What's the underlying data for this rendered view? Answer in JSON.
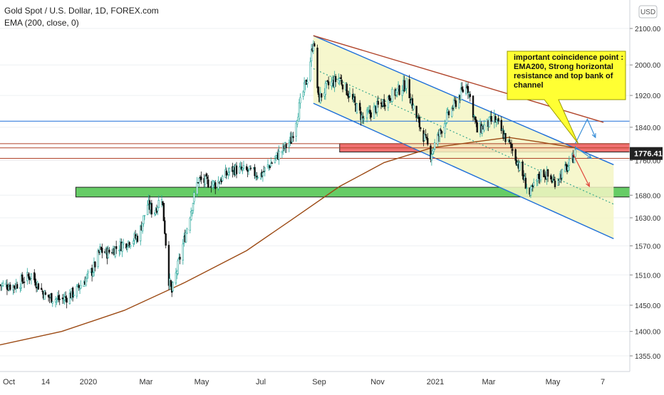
{
  "legend": {
    "symbol": "Gold Spot / U.S. Dollar, 1D, FOREX.com",
    "indicator": "EMA (200, close, 0)"
  },
  "currency_label": "USD",
  "annotation": {
    "lines": [
      "important coincidence point :",
      "EMA200, Strong horizontal",
      "resistance and top bank of",
      "channel"
    ]
  },
  "colors": {
    "up": "#26a69a",
    "down": "#111111",
    "ema": "#9c4a14",
    "channel": "#1e6fd9",
    "trend": "#b0442a",
    "resistance_zone": "#f07070",
    "support_zone": "#66cc66",
    "callout": "#ffff33",
    "last_price_bg": "#222222"
  },
  "chart_data": {
    "type": "candlestick",
    "title": "Gold Spot / U.S. Dollar, 1D, FOREX.com",
    "y_axis": {
      "ticks": [
        2100,
        2000,
        1920,
        1840,
        1760,
        1680,
        1630,
        1570,
        1510,
        1450,
        1400,
        1355
      ],
      "tick_labels": [
        "2100.00",
        "2000.00",
        "1920.00",
        "1840.00",
        "1760.00",
        "1680.00",
        "1630.00",
        "1570.00",
        "1510.00",
        "1450.00",
        "1400.00",
        "1355.00"
      ],
      "range": [
        1330,
        2130
      ],
      "scale": "log"
    },
    "x_axis": {
      "tick_labels": [
        "Oct",
        "14",
        "2020",
        "Mar",
        "May",
        "Jul",
        "Sep",
        "Nov",
        "2021",
        "Mar",
        "May",
        "7"
      ],
      "range": [
        "2019-10-01",
        "2021-06-15"
      ]
    },
    "last_price": {
      "value": 1776.41,
      "label": "1776.41"
    },
    "close_series": [
      [
        "2019-10-01",
        1490
      ],
      [
        "2019-10-15",
        1488
      ],
      [
        "2019-11-01",
        1510
      ],
      [
        "2019-11-15",
        1468
      ],
      [
        "2019-12-01",
        1460
      ],
      [
        "2019-12-15",
        1477
      ],
      [
        "2020-01-01",
        1520
      ],
      [
        "2020-01-08",
        1560
      ],
      [
        "2020-01-15",
        1555
      ],
      [
        "2020-02-01",
        1575
      ],
      [
        "2020-02-15",
        1590
      ],
      [
        "2020-02-24",
        1660
      ],
      [
        "2020-03-01",
        1640
      ],
      [
        "2020-03-09",
        1680
      ],
      [
        "2020-03-16",
        1500
      ],
      [
        "2020-03-19",
        1475
      ],
      [
        "2020-04-01",
        1590
      ],
      [
        "2020-04-14",
        1715
      ],
      [
        "2020-05-01",
        1705
      ],
      [
        "2020-05-18",
        1740
      ],
      [
        "2020-06-01",
        1735
      ],
      [
        "2020-06-15",
        1726
      ],
      [
        "2020-07-01",
        1770
      ],
      [
        "2020-07-15",
        1808
      ],
      [
        "2020-07-24",
        1900
      ],
      [
        "2020-08-01",
        1975
      ],
      [
        "2020-08-06",
        2070
      ],
      [
        "2020-08-11",
        1910
      ],
      [
        "2020-08-20",
        1945
      ],
      [
        "2020-09-01",
        1965
      ],
      [
        "2020-09-24",
        1860
      ],
      [
        "2020-10-15",
        1905
      ],
      [
        "2020-11-06",
        1950
      ],
      [
        "2020-11-15",
        1870
      ],
      [
        "2020-11-30",
        1775
      ],
      [
        "2020-12-15",
        1860
      ],
      [
        "2021-01-05",
        1950
      ],
      [
        "2021-01-15",
        1830
      ],
      [
        "2021-02-01",
        1860
      ],
      [
        "2021-02-20",
        1780
      ],
      [
        "2021-03-05",
        1700
      ],
      [
        "2021-03-08",
        1680
      ],
      [
        "2021-03-20",
        1735
      ],
      [
        "2021-04-01",
        1710
      ],
      [
        "2021-04-15",
        1745
      ],
      [
        "2021-04-22",
        1776.41
      ]
    ],
    "ema200": [
      [
        "2019-10-01",
        1375
      ],
      [
        "2019-12-01",
        1400
      ],
      [
        "2020-02-01",
        1440
      ],
      [
        "2020-04-01",
        1495
      ],
      [
        "2020-06-01",
        1560
      ],
      [
        "2020-07-15",
        1625
      ],
      [
        "2020-09-01",
        1700
      ],
      [
        "2020-10-15",
        1755
      ],
      [
        "2020-12-01",
        1790
      ],
      [
        "2021-01-15",
        1805
      ],
      [
        "2021-02-15",
        1815
      ],
      [
        "2021-03-15",
        1805
      ],
      [
        "2021-04-22",
        1790
      ]
    ],
    "horizontal_levels": [
      {
        "value": 1855,
        "kind": "line"
      },
      {
        "value": 1800,
        "kind": "line"
      },
      {
        "value": 1790,
        "kind": "line"
      },
      {
        "value": 1765,
        "kind": "line"
      }
    ],
    "zones": [
      {
        "kind": "resistance",
        "from": 1780,
        "to": 1800,
        "start": "2020-09-01",
        "end": "2021-06-15"
      },
      {
        "kind": "support",
        "from": 1676,
        "to": 1698,
        "start": "2019-12-15",
        "end": "2021-06-15"
      }
    ],
    "channel": {
      "upper": [
        [
          "2020-08-06",
          2080
        ],
        [
          "2021-05-30",
          1750
        ]
      ],
      "middle": [
        [
          "2020-08-06",
          1990
        ],
        [
          "2021-05-30",
          1660
        ]
      ],
      "lower": [
        [
          "2020-08-06",
          1900
        ],
        [
          "2021-05-30",
          1585
        ]
      ]
    },
    "trend_line": [
      [
        "2020-08-06",
        2080
      ],
      [
        "2021-05-20",
        1852
      ]
    ],
    "projections": [
      {
        "from": [
          "2021-04-22",
          1792
        ],
        "to": [
          "2021-05-08",
          1765
        ]
      },
      {
        "from": [
          "2021-04-22",
          1800
        ],
        "to": [
          "2021-05-04",
          1860
        ],
        "then": [
          "2021-05-12",
          1815
        ]
      },
      {
        "from": [
          "2021-04-20",
          1775
        ],
        "to": [
          "2021-05-06",
          1700
        ]
      }
    ]
  }
}
